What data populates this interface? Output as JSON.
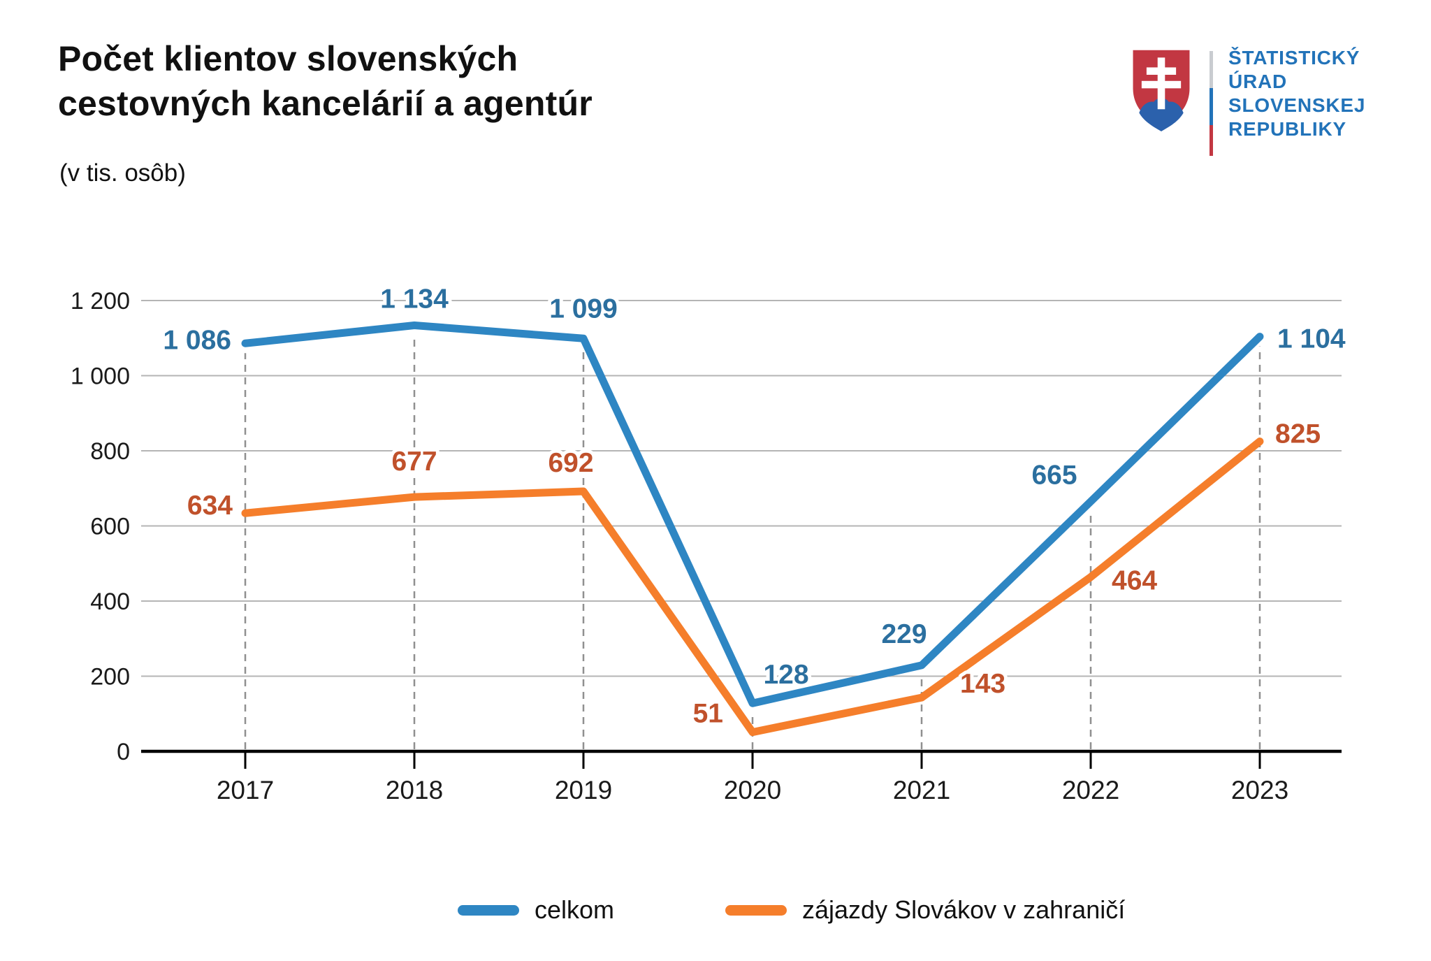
{
  "header": {
    "title_lines": [
      "Počet klientov slovenských",
      "cestovných kancelárií a agentúr"
    ],
    "subtitle": "(v tis. osôb)"
  },
  "logo": {
    "org_lines": [
      "ŠTATISTICKÝ",
      "ÚRAD",
      "SLOVENSKEJ",
      "REPUBLIKY"
    ],
    "text_color": "#2273B9",
    "shield_red": "#C23742",
    "shield_blue": "#2B61AC",
    "divider_colors": [
      "#C9CCD0",
      "#2273B9",
      "#C23742"
    ]
  },
  "chart_data": {
    "type": "line",
    "x": [
      2017,
      2018,
      2019,
      2020,
      2021,
      2022,
      2023
    ],
    "series": [
      {
        "name": "celkom",
        "color": "#2E86C3",
        "label_color": "#2B6F9F",
        "values": [
          1086,
          1134,
          1099,
          128,
          229,
          665,
          1104
        ],
        "labels": [
          "1 086",
          "1 134",
          "1 099",
          "128",
          "229",
          "665",
          "1 104"
        ]
      },
      {
        "name": "zájazdy Slovákov v zahraničí",
        "color": "#F57E2B",
        "label_color": "#C0512B",
        "values": [
          634,
          677,
          692,
          51,
          143,
          464,
          825
        ],
        "labels": [
          "634",
          "677",
          "692",
          "51",
          "143",
          "464",
          "825"
        ]
      }
    ],
    "ylim": [
      0,
      1200
    ],
    "ytick_step": 200,
    "ytick_labels": [
      "0",
      "200",
      "400",
      "600",
      "800",
      "1 000",
      "1 200"
    ],
    "xtick_labels": [
      "2017",
      "2018",
      "2019",
      "2020",
      "2021",
      "2022",
      "2023"
    ],
    "grid": true,
    "guide_lines": "vertical-dashed-per-year",
    "legend_position": "bottom",
    "axis_color": "#000000",
    "grid_color": "#B5B5B5",
    "guide_color": "#909090",
    "tick_label_color": "#1A1A1A"
  }
}
